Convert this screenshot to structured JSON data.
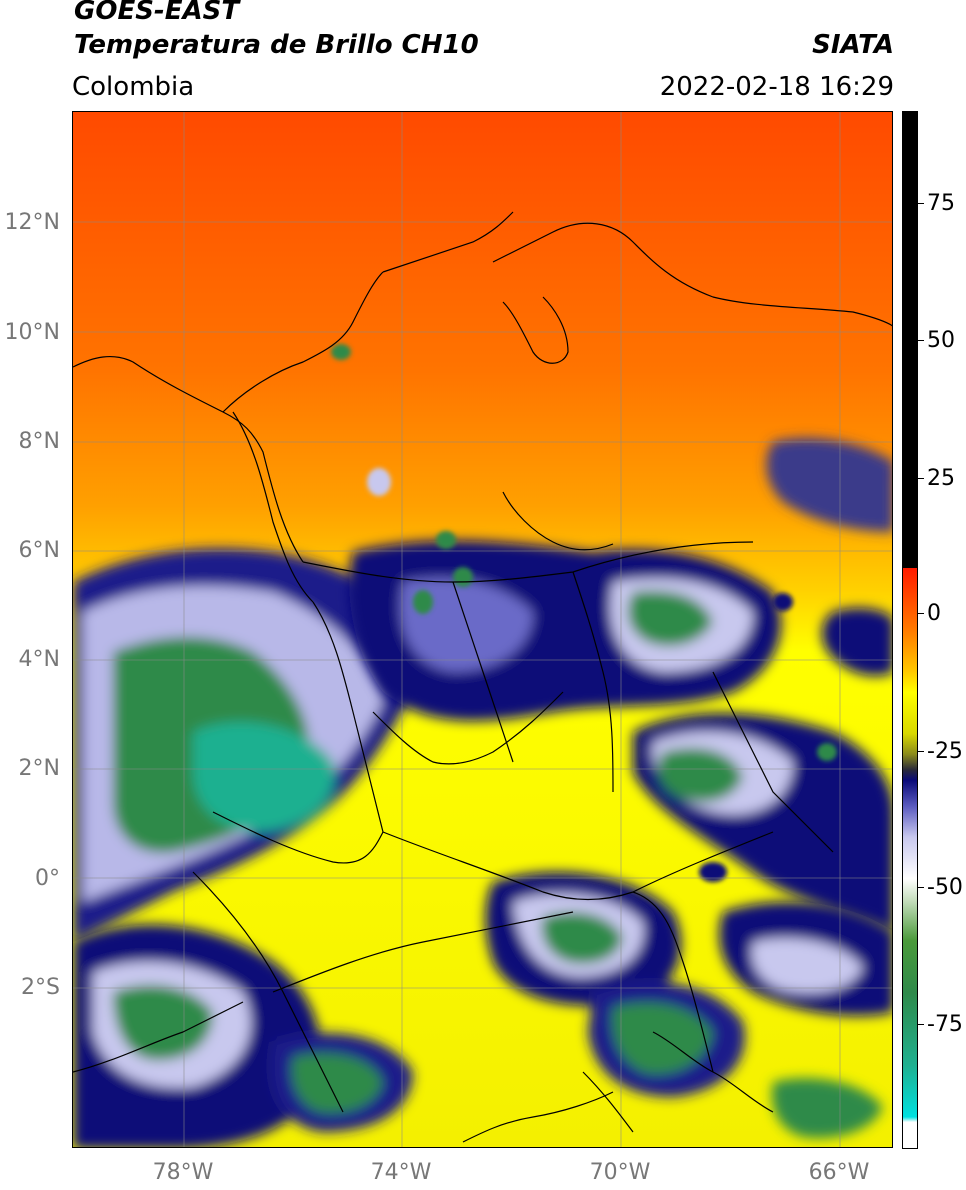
{
  "header": {
    "satellite": "GOES-EAST",
    "product": "Temperatura de Brillo CH10",
    "agency": "SIATA",
    "region": "Colombia",
    "timestamp": "2022-02-18 16:29"
  },
  "axes": {
    "lat_labels": [
      "12°N",
      "10°N",
      "8°N",
      "6°N",
      "4°N",
      "2°N",
      "0°",
      "2°S"
    ],
    "lon_labels": [
      "78°W",
      "74°W",
      "70°W",
      "66°W"
    ]
  },
  "colorbar": {
    "tick_labels": [
      "75",
      "50",
      "25",
      "0",
      "-25",
      "-50",
      "-75"
    ],
    "colors": {
      "warm": "#ff5a00",
      "mid": "#ffff00",
      "cold": "#0a0a78",
      "coldest": "#2f8a4a"
    }
  }
}
